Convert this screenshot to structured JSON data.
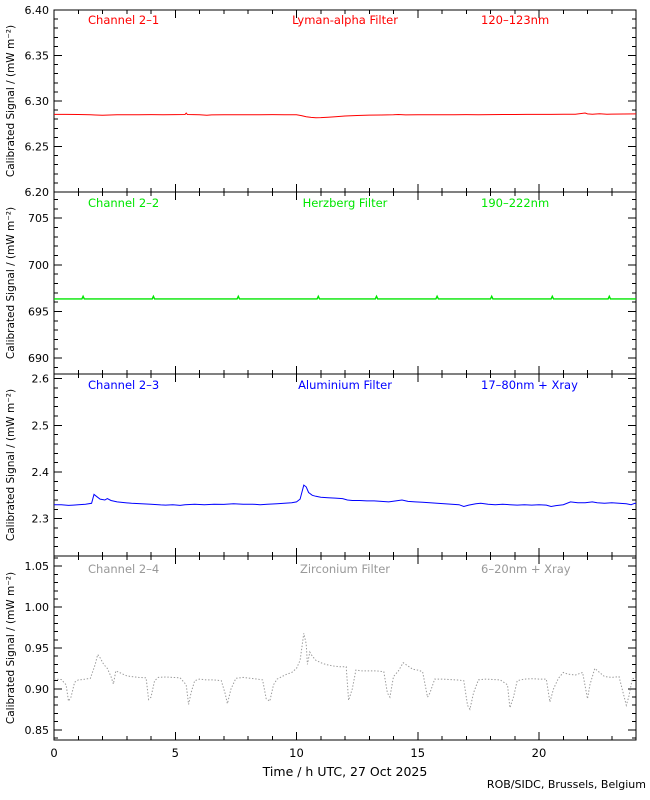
{
  "xaxis": {
    "label": "Time / h UTC, 27 Oct 2025",
    "xlim": [
      0,
      24
    ],
    "ticks": [
      0,
      5,
      10,
      15,
      20
    ],
    "tick_labels": [
      "0",
      "5",
      "10",
      "15",
      "20"
    ],
    "minor_step": 1
  },
  "ylabel": "Calibrated Signal / (mW m⁻²)",
  "credit": "ROB/SIDC, Brussels, Belgium",
  "axis_color": "#000000",
  "background": "#ffffff",
  "chart_data": [
    {
      "type": "line",
      "channel": "Channel 2–1",
      "filter": "Lyman-alpha Filter",
      "wavelength": "120–123nm",
      "color": "#ff0000",
      "line_style": "solid",
      "ylim": [
        6.2,
        6.4
      ],
      "yticks": [
        6.2,
        6.25,
        6.3,
        6.35,
        6.4
      ],
      "ytick_labels": [
        "6.20",
        "6.25",
        "6.30",
        "6.35",
        "6.40"
      ],
      "yminor_step": 0.01,
      "x": [
        0,
        0.5,
        1,
        1.5,
        1.7,
        2,
        2.3,
        2.6,
        3,
        3.5,
        4,
        4.5,
        5,
        5.4,
        5.45,
        5.5,
        6,
        6.3,
        6.5,
        7,
        7.5,
        8,
        8.5,
        9,
        9.5,
        10,
        10.2,
        10.4,
        10.6,
        10.8,
        11,
        11.3,
        11.6,
        12,
        12.5,
        13,
        13.5,
        14,
        14.2,
        14.5,
        15,
        15.5,
        16,
        16.5,
        17,
        17.5,
        18,
        18.5,
        19,
        19.5,
        20,
        20.5,
        21,
        21.5,
        21.9,
        22,
        22.2,
        22.5,
        22.8,
        23,
        23.5,
        24
      ],
      "y": [
        6.2853,
        6.2853,
        6.2852,
        6.285,
        6.2846,
        6.2843,
        6.2846,
        6.2848,
        6.285,
        6.2849,
        6.2851,
        6.285,
        6.2851,
        6.2852,
        6.2868,
        6.2852,
        6.2849,
        6.2843,
        6.2847,
        6.2849,
        6.2848,
        6.285,
        6.2849,
        6.2851,
        6.285,
        6.2848,
        6.284,
        6.2827,
        6.282,
        6.2817,
        6.2818,
        6.2822,
        6.2828,
        6.2835,
        6.2841,
        6.2845,
        6.2846,
        6.2848,
        6.2852,
        6.2847,
        6.2849,
        6.285,
        6.2849,
        6.285,
        6.2851,
        6.285,
        6.2851,
        6.2852,
        6.2852,
        6.2853,
        6.2853,
        6.2853,
        6.2854,
        6.2855,
        6.2868,
        6.2858,
        6.2854,
        6.2859,
        6.2855,
        6.2856,
        6.2857,
        6.2858
      ]
    },
    {
      "type": "line",
      "channel": "Channel 2–2",
      "filter": "Herzberg Filter",
      "wavelength": "190–222nm",
      "color": "#00e600",
      "line_style": "solid",
      "ylim": [
        688.3,
        707.8
      ],
      "yticks": [
        690,
        695,
        700,
        705
      ],
      "ytick_labels": [
        "690",
        "695",
        "700",
        "705"
      ],
      "yminor_step": 1,
      "x": [
        0,
        0.5,
        1,
        1.15,
        1.2,
        1.25,
        1.5,
        2,
        2.5,
        3,
        3.5,
        4,
        4.05,
        4.1,
        4.15,
        4.5,
        5,
        5.5,
        6,
        6.5,
        7,
        7.55,
        7.6,
        7.65,
        8,
        8.5,
        9,
        9.5,
        10,
        10.5,
        10.85,
        10.9,
        10.95,
        11.5,
        12,
        12.5,
        13,
        13.25,
        13.3,
        13.35,
        14,
        14.5,
        15,
        15.5,
        15.75,
        15.8,
        15.85,
        16.5,
        17,
        17.5,
        18,
        18.05,
        18.1,
        18.5,
        19,
        19.5,
        20,
        20.5,
        20.55,
        20.6,
        21,
        21.5,
        22,
        22.5,
        22.85,
        22.9,
        22.95,
        23.5,
        24
      ],
      "y": [
        696.35,
        696.35,
        696.35,
        696.35,
        696.62,
        696.35,
        696.35,
        696.35,
        696.35,
        696.35,
        696.35,
        696.35,
        696.35,
        696.62,
        696.35,
        696.35,
        696.35,
        696.35,
        696.35,
        696.35,
        696.35,
        696.35,
        696.62,
        696.35,
        696.35,
        696.35,
        696.35,
        696.35,
        696.35,
        696.35,
        696.35,
        696.62,
        696.35,
        696.35,
        696.35,
        696.35,
        696.35,
        696.35,
        696.62,
        696.35,
        696.35,
        696.35,
        696.35,
        696.35,
        696.35,
        696.62,
        696.35,
        696.35,
        696.35,
        696.35,
        696.35,
        696.62,
        696.35,
        696.35,
        696.35,
        696.35,
        696.35,
        696.35,
        696.62,
        696.35,
        696.35,
        696.35,
        696.35,
        696.35,
        696.35,
        696.62,
        696.35,
        696.35,
        696.35
      ]
    },
    {
      "type": "line",
      "channel": "Channel 2–3",
      "filter": "Aluminium Filter",
      "wavelength": "17–80nm + Xray",
      "color": "#0000ff",
      "line_style": "solid",
      "ylim": [
        2.22,
        2.61
      ],
      "yticks": [
        2.3,
        2.4,
        2.5,
        2.6
      ],
      "ytick_labels": [
        "2.3",
        "2.4",
        "2.5",
        "2.6"
      ],
      "yminor_step": 0.02,
      "x": [
        0,
        0.3,
        0.6,
        0.8,
        1,
        1.3,
        1.55,
        1.65,
        1.75,
        1.9,
        2.1,
        2.2,
        2.35,
        2.6,
        2.9,
        3.2,
        3.6,
        4,
        4.4,
        4.6,
        4.9,
        5.2,
        5.4,
        5.8,
        6.2,
        6.6,
        7,
        7.4,
        7.8,
        8.2,
        8.5,
        8.8,
        9.2,
        9.5,
        9.8,
        10,
        10.15,
        10.3,
        10.4,
        10.5,
        10.65,
        10.8,
        11,
        11.3,
        11.6,
        11.9,
        12.1,
        12.3,
        12.6,
        12.9,
        13.2,
        13.5,
        13.8,
        14.1,
        14.35,
        14.6,
        14.9,
        15.2,
        15.5,
        15.8,
        16.1,
        16.4,
        16.7,
        16.9,
        17.1,
        17.4,
        17.6,
        17.9,
        18.2,
        18.5,
        18.8,
        19.1,
        19.4,
        19.7,
        20,
        20.3,
        20.5,
        20.7,
        21,
        21.3,
        21.6,
        21.9,
        22.2,
        22.4,
        22.7,
        23,
        23.3,
        23.6,
        23.8,
        23.95,
        24
      ],
      "y": [
        2.33,
        2.3297,
        2.3285,
        2.329,
        2.33,
        2.331,
        2.333,
        2.352,
        2.348,
        2.342,
        2.34,
        2.343,
        2.339,
        2.336,
        2.3345,
        2.333,
        2.332,
        2.331,
        2.3295,
        2.329,
        2.33,
        2.3285,
        2.33,
        2.331,
        2.33,
        2.331,
        2.3305,
        2.332,
        2.331,
        2.331,
        2.33,
        2.331,
        2.332,
        2.333,
        2.334,
        2.336,
        2.342,
        2.372,
        2.368,
        2.356,
        2.35,
        2.348,
        2.346,
        2.345,
        2.344,
        2.343,
        2.34,
        2.339,
        2.339,
        2.338,
        2.338,
        2.337,
        2.336,
        2.338,
        2.34,
        2.337,
        2.336,
        2.335,
        2.334,
        2.333,
        2.332,
        2.331,
        2.33,
        2.326,
        2.329,
        2.332,
        2.333,
        2.331,
        2.33,
        2.331,
        2.33,
        2.329,
        2.33,
        2.329,
        2.33,
        2.329,
        2.326,
        2.328,
        2.33,
        2.336,
        2.334,
        2.334,
        2.336,
        2.334,
        2.333,
        2.334,
        2.333,
        2.332,
        2.33,
        2.333,
        2.332
      ]
    },
    {
      "type": "line",
      "channel": "Channel 2–4",
      "filter": "Zirconium Filter",
      "wavelength": "6–20nm + Xray",
      "color": "#999999",
      "line_style": "dotted",
      "ylim": [
        0.8375,
        1.0625
      ],
      "yticks": [
        0.85,
        0.9,
        0.95,
        1.0,
        1.05
      ],
      "ytick_labels": [
        "0.85",
        "0.90",
        "0.95",
        "1.00",
        "1.05"
      ],
      "yminor_step": 0.01,
      "x": [
        0,
        0.3,
        0.5,
        0.6,
        0.7,
        0.85,
        1,
        1.2,
        1.5,
        1.7,
        1.8,
        1.9,
        2.05,
        2.2,
        2.35,
        2.45,
        2.55,
        2.7,
        2.85,
        3,
        3.2,
        3.5,
        3.8,
        3.9,
        4,
        4.15,
        4.3,
        4.6,
        4.9,
        5.2,
        5.45,
        5.55,
        5.65,
        5.8,
        6,
        6.3,
        6.6,
        6.9,
        7.05,
        7.15,
        7.3,
        7.5,
        7.8,
        8.1,
        8.4,
        8.6,
        8.75,
        8.9,
        9.05,
        9.2,
        9.4,
        9.6,
        9.8,
        10,
        10.15,
        10.3,
        10.4,
        10.45,
        10.55,
        10.65,
        10.8,
        11,
        11.2,
        11.5,
        11.8,
        12.05,
        12.15,
        12.3,
        12.45,
        12.7,
        13,
        13.3,
        13.6,
        13.75,
        13.85,
        14,
        14.2,
        14.4,
        14.6,
        14.8,
        15,
        15.2,
        15.4,
        15.5,
        15.7,
        16,
        16.3,
        16.6,
        16.9,
        17.05,
        17.15,
        17.3,
        17.5,
        17.8,
        18.1,
        18.4,
        18.7,
        18.8,
        18.95,
        19.1,
        19.4,
        19.7,
        20,
        20.3,
        20.45,
        20.6,
        20.8,
        21,
        21.2,
        21.5,
        21.8,
        22,
        22.1,
        22.3,
        22.5,
        22.7,
        23,
        23.3,
        23.6,
        23.7,
        23.85,
        24
      ],
      "y": [
        0.912,
        0.9115,
        0.905,
        0.885,
        0.89,
        0.908,
        0.911,
        0.9115,
        0.913,
        0.93,
        0.942,
        0.938,
        0.93,
        0.925,
        0.915,
        0.906,
        0.922,
        0.92,
        0.918,
        0.916,
        0.915,
        0.914,
        0.9135,
        0.887,
        0.89,
        0.91,
        0.914,
        0.9145,
        0.914,
        0.9135,
        0.905,
        0.881,
        0.895,
        0.91,
        0.912,
        0.911,
        0.911,
        0.91,
        0.895,
        0.882,
        0.9,
        0.913,
        0.914,
        0.913,
        0.912,
        0.911,
        0.888,
        0.885,
        0.905,
        0.912,
        0.915,
        0.918,
        0.92,
        0.925,
        0.935,
        0.968,
        0.955,
        0.93,
        0.945,
        0.94,
        0.935,
        0.932,
        0.93,
        0.928,
        0.927,
        0.927,
        0.886,
        0.9,
        0.923,
        0.922,
        0.922,
        0.922,
        0.921,
        0.895,
        0.89,
        0.915,
        0.922,
        0.932,
        0.928,
        0.924,
        0.923,
        0.921,
        0.89,
        0.895,
        0.912,
        0.912,
        0.9115,
        0.911,
        0.91,
        0.88,
        0.875,
        0.895,
        0.911,
        0.912,
        0.9115,
        0.911,
        0.905,
        0.877,
        0.89,
        0.91,
        0.912,
        0.9125,
        0.912,
        0.912,
        0.884,
        0.9,
        0.913,
        0.92,
        0.918,
        0.917,
        0.92,
        0.888,
        0.905,
        0.925,
        0.92,
        0.915,
        0.914,
        0.915,
        0.88,
        0.89,
        0.913,
        0.912
      ]
    }
  ]
}
